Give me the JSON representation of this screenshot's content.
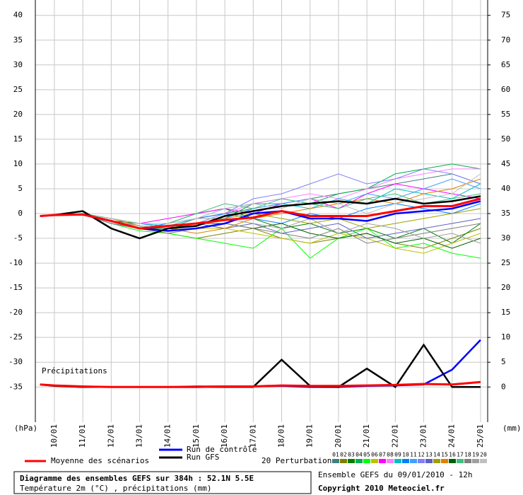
{
  "chart_data": {
    "type": "line",
    "title": "Diagramme des ensembles GEFS sur 384h : 52.1N 5.5E",
    "subtitle": "Température 2m (°C) , précipitations (mm)",
    "ylabel": "(hPa)",
    "y2label": "(mm)",
    "annotations": [
      "Précipitations",
      "20 Perturbations",
      "Ensemble GEFS du 09/01/2010 - 12h",
      "Copyright 2010 Meteociel.fr"
    ],
    "x": [
      9.5,
      10,
      11,
      12,
      13,
      14,
      15,
      16,
      17,
      18,
      19,
      20,
      21,
      22,
      23,
      24,
      25
    ],
    "xlim": [
      9.33,
      25.25
    ],
    "xticks": [
      {
        "value": 10,
        "label": "10/01"
      },
      {
        "value": 11,
        "label": "11/01"
      },
      {
        "value": 12,
        "label": "12/01"
      },
      {
        "value": 13,
        "label": "13/01"
      },
      {
        "value": 14,
        "label": "14/01"
      },
      {
        "value": 15,
        "label": "15/01"
      },
      {
        "value": 16,
        "label": "16/01"
      },
      {
        "value": 17,
        "label": "17/01"
      },
      {
        "value": 18,
        "label": "18/01"
      },
      {
        "value": 19,
        "label": "19/01"
      },
      {
        "value": 20,
        "label": "20/01"
      },
      {
        "value": 21,
        "label": "21/01"
      },
      {
        "value": 22,
        "label": "22/01"
      },
      {
        "value": 23,
        "label": "23/01"
      },
      {
        "value": 24,
        "label": "24/01"
      },
      {
        "value": 25,
        "label": "25/01"
      }
    ],
    "ylim": [
      -42.1,
      43.1
    ],
    "yticks": [
      -35,
      -30,
      -25,
      -20,
      -15,
      -10,
      -5,
      0,
      5,
      10,
      15,
      20,
      25,
      30,
      35,
      40
    ],
    "y2lim": [
      -7.1,
      78.1
    ],
    "y2ticks": [
      0,
      5,
      10,
      15,
      20,
      25,
      30,
      35,
      40,
      45,
      50,
      55,
      60,
      65,
      70,
      75
    ],
    "grid": true,
    "series": [
      {
        "name": "01",
        "color": "#408080",
        "values": [
          -0.5,
          -0.3,
          -0.2,
          -1,
          -2.5,
          -3,
          -1,
          0,
          1,
          2,
          3,
          4,
          5,
          6,
          7,
          8,
          6
        ]
      },
      {
        "name": "02",
        "color": "#808000",
        "values": [
          -0.5,
          -0.3,
          -0.2,
          -2,
          -3,
          -4,
          -5,
          -4,
          -3,
          -5,
          -6,
          -5,
          -4,
          -6,
          -7,
          -5,
          -3
        ]
      },
      {
        "name": "03",
        "color": "#008000",
        "values": [
          -0.5,
          -0.3,
          -0.2,
          -1.5,
          -2,
          -2,
          0,
          1,
          -1,
          -3,
          -2,
          -4,
          -3,
          -5,
          -3,
          -6,
          -2
        ]
      },
      {
        "name": "04",
        "color": "#00b050",
        "values": [
          -0.5,
          -0.3,
          0,
          -1,
          -2.5,
          -3,
          -2,
          -1,
          2,
          3,
          2,
          4,
          5,
          8,
          9,
          10,
          9
        ]
      },
      {
        "name": "05",
        "color": "#00ff00",
        "values": [
          -0.5,
          -0.3,
          -0.2,
          -2,
          -3.5,
          -4,
          -5,
          -6,
          -7,
          -3,
          -9,
          -5,
          -3,
          -7,
          -6,
          -8,
          -9
        ]
      },
      {
        "name": "06",
        "color": "#c0c000",
        "values": [
          -0.5,
          -0.3,
          -0.2,
          -1.5,
          -3,
          -4,
          -3,
          -3,
          -4,
          -5,
          -6,
          -4,
          -5,
          -7,
          -8,
          -6,
          -4
        ]
      },
      {
        "name": "07",
        "color": "#ff00ff",
        "values": [
          -0.5,
          -0.3,
          -0.2,
          -1,
          -2,
          -1,
          0,
          1,
          0,
          2,
          3,
          1,
          4,
          6,
          5,
          4,
          3
        ]
      },
      {
        "name": "08",
        "color": "#ff80ff",
        "values": [
          -0.5,
          -0.3,
          -0.2,
          -1.5,
          -3,
          -3,
          -1,
          0,
          2,
          3,
          4,
          3,
          5,
          7,
          8,
          9,
          9
        ]
      },
      {
        "name": "09",
        "color": "#00c0c0",
        "values": [
          -0.5,
          -0.3,
          -0.2,
          -1,
          -2,
          -2.5,
          -1,
          1,
          2,
          2,
          1,
          3,
          2,
          5,
          4,
          3,
          6
        ]
      },
      {
        "name": "10",
        "color": "#0080ff",
        "values": [
          -0.5,
          -0.3,
          -0.2,
          -2,
          -3,
          -2,
          -1,
          0,
          -1,
          -2,
          0,
          -1,
          1,
          2,
          1,
          0,
          2
        ]
      },
      {
        "name": "11",
        "color": "#40a0ff",
        "values": [
          -0.5,
          -0.3,
          -0.2,
          -1,
          -2,
          -3,
          -2,
          -1,
          1,
          2,
          3,
          2,
          4,
          3,
          5,
          7,
          5
        ]
      },
      {
        "name": "12",
        "color": "#8080ff",
        "values": [
          -0.5,
          -0.3,
          -0.2,
          -1.5,
          -2.5,
          -3,
          -2,
          0,
          3,
          4,
          6,
          8,
          6,
          7,
          9,
          8,
          6
        ]
      },
      {
        "name": "13",
        "color": "#6060c0",
        "values": [
          -0.5,
          -0.3,
          -0.2,
          -2,
          -3,
          -3,
          -2,
          -3,
          -2,
          -4,
          -3,
          -2,
          -5,
          -4,
          -3,
          -2,
          -1
        ]
      },
      {
        "name": "14",
        "color": "#a0a000",
        "values": [
          -0.5,
          -0.3,
          -0.2,
          -1.5,
          -3,
          -3.5,
          -2,
          -1,
          0,
          -1,
          -2,
          -1,
          -3,
          -2,
          -1,
          0,
          1
        ]
      },
      {
        "name": "15",
        "color": "#e08000",
        "values": [
          -0.5,
          -0.3,
          -0.2,
          -1,
          -2.5,
          -3,
          -4,
          -3,
          -1,
          0,
          1,
          2,
          3,
          2,
          4,
          5,
          7
        ]
      },
      {
        "name": "16",
        "color": "#006000",
        "values": [
          -0.5,
          -0.3,
          -0.2,
          -1.5,
          -3,
          -3,
          -2,
          -2,
          -3,
          -2,
          -4,
          -5,
          -4,
          -6,
          -5,
          -7,
          -5
        ]
      },
      {
        "name": "17",
        "color": "#40c080",
        "values": [
          -0.5,
          -0.3,
          -0.2,
          -1,
          -2,
          -2,
          0,
          2,
          1,
          3,
          2,
          1,
          3,
          4,
          2,
          3,
          4
        ]
      },
      {
        "name": "18",
        "color": "#808080",
        "values": [
          -0.5,
          -0.3,
          -0.2,
          -2,
          -3,
          -4,
          -3,
          -2,
          -3,
          -4,
          -5,
          -3,
          -6,
          -5,
          -4,
          -3,
          -2
        ]
      },
      {
        "name": "19",
        "color": "#a0a0a0",
        "values": [
          -0.5,
          -0.3,
          -0.2,
          -1.5,
          -2.5,
          -3,
          -1,
          -1,
          -2,
          -3,
          -1,
          -4,
          -2,
          -3,
          -5,
          -4,
          -6
        ]
      },
      {
        "name": "20",
        "color": "#c0c0c0",
        "values": [
          -0.5,
          -0.3,
          -0.2,
          -1,
          -2,
          -2,
          -1,
          1,
          2,
          1,
          3,
          2,
          0,
          2,
          3,
          4,
          8
        ]
      },
      {
        "name": "Run de contrôle",
        "color": "#0000ff",
        "values": [
          -0.5,
          -0.3,
          -0.2,
          -1.5,
          -3,
          -3.5,
          -3,
          -2,
          0,
          0.5,
          -1,
          -1,
          -1.5,
          0,
          0.5,
          1,
          2.5
        ]
      },
      {
        "name": "Run GFS",
        "color": "#000000",
        "values": [
          -0.5,
          -0.3,
          0.5,
          -3,
          -5,
          -3,
          -2.5,
          -0.5,
          0.5,
          1.5,
          2,
          2.5,
          2,
          3,
          2,
          2.5,
          3.5
        ]
      },
      {
        "name": "Moyenne des scénarios",
        "color": "#ff0000",
        "values": [
          -0.5,
          -0.3,
          -0.2,
          -1.5,
          -3,
          -2.5,
          -2,
          -1.3,
          -0.8,
          0.5,
          -0.5,
          -0.5,
          -0.5,
          0.5,
          1.5,
          1.5,
          3
        ]
      },
      {
        "color": "#0000ff",
        "axis": "y2",
        "values": [
          0.5,
          0.3,
          0,
          0,
          0,
          0,
          0.1,
          0.1,
          0.1,
          0.2,
          0,
          0,
          0.2,
          0.3,
          0.5,
          3.5,
          9.5
        ]
      },
      {
        "color": "#000000",
        "axis": "y2",
        "values": [
          0.5,
          0.2,
          0,
          0,
          0,
          0,
          0,
          0,
          0,
          5.5,
          0.2,
          0,
          3.7,
          0,
          8.5,
          0,
          0
        ]
      },
      {
        "color": "#ff0000",
        "axis": "y2",
        "values": [
          0.5,
          0.3,
          0.1,
          0,
          0,
          0,
          0,
          0.1,
          0.1,
          0.3,
          0.2,
          0.2,
          0.3,
          0.4,
          0.6,
          0.5,
          1
        ]
      }
    ]
  }
}
